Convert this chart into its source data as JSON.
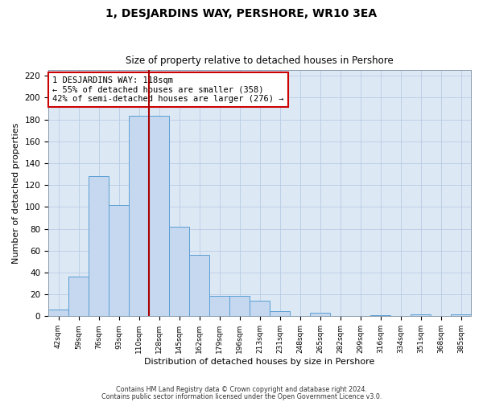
{
  "title": "1, DESJARDINS WAY, PERSHORE, WR10 3EA",
  "subtitle": "Size of property relative to detached houses in Pershore",
  "xlabel": "Distribution of detached houses by size in Pershore",
  "ylabel": "Number of detached properties",
  "bar_labels": [
    "42sqm",
    "59sqm",
    "76sqm",
    "93sqm",
    "110sqm",
    "128sqm",
    "145sqm",
    "162sqm",
    "179sqm",
    "196sqm",
    "213sqm",
    "231sqm",
    "248sqm",
    "265sqm",
    "282sqm",
    "299sqm",
    "316sqm",
    "334sqm",
    "351sqm",
    "368sqm",
    "385sqm"
  ],
  "bar_values": [
    6,
    36,
    128,
    102,
    183,
    183,
    82,
    56,
    19,
    19,
    14,
    5,
    0,
    3,
    0,
    0,
    1,
    0,
    2,
    0,
    2
  ],
  "bar_color": "#c5d8f0",
  "bar_edge_color": "#5a9fd4",
  "red_line_index": 4.5,
  "red_line_color": "#aa0000",
  "annotation_title": "1 DESJARDINS WAY: 118sqm",
  "annotation_line1": "← 55% of detached houses are smaller (358)",
  "annotation_line2": "42% of semi-detached houses are larger (276) →",
  "annotation_box_color": "#ffffff",
  "annotation_box_edge": "#cc0000",
  "ylim": [
    0,
    225
  ],
  "yticks": [
    0,
    20,
    40,
    60,
    80,
    100,
    120,
    140,
    160,
    180,
    200,
    220
  ],
  "background_color": "#ffffff",
  "plot_bg_color": "#dde8f5",
  "grid_color": "#b8cce4",
  "footer_line1": "Contains HM Land Registry data © Crown copyright and database right 2024.",
  "footer_line2": "Contains public sector information licensed under the Open Government Licence v3.0."
}
